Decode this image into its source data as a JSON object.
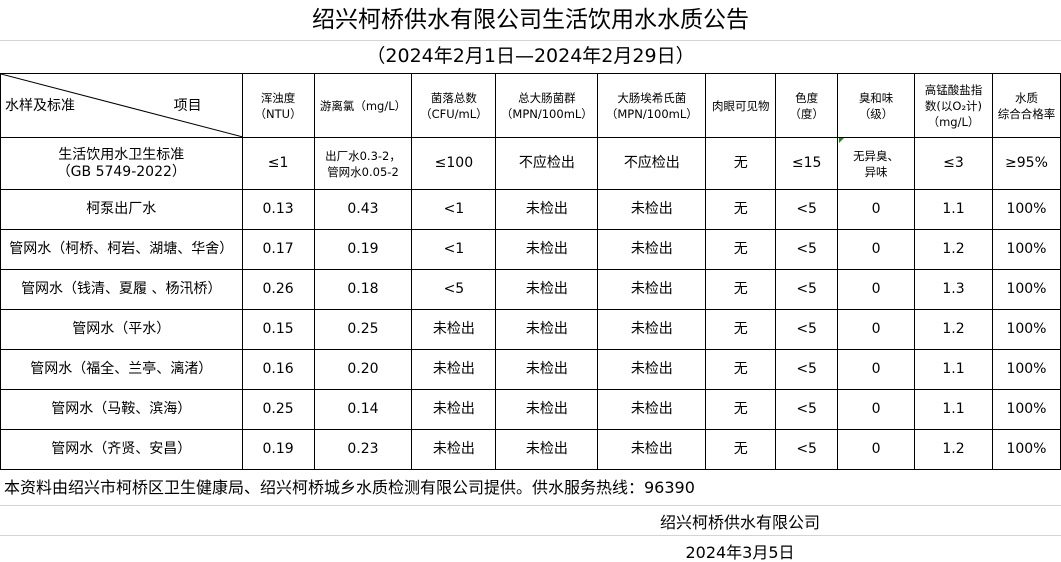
{
  "title": "绍兴柯桥供水有限公司生活饮用水水质公告",
  "subtitle": "（2024年2月1日—2024年2月29日）",
  "table": {
    "corner": {
      "left": "水样及标准",
      "right": "项目"
    },
    "headers": [
      "浑浊度\n（NTU）",
      "游离氯（mg/L）",
      "菌落总数\n（CFU/mL）",
      "总大肠菌群\n（MPN/100mL）",
      "大肠埃希氏菌\n（MPN/100mL）",
      "肉眼可见物",
      "色度\n（度）",
      "臭和味\n（级）",
      "高锰酸盐指\n数(以O₂计)\n（mg/L）",
      "水质\n综合合格率"
    ],
    "standard": {
      "name": "生活饮用水卫生标准\n（GB 5749-2022）",
      "values": [
        "≤1",
        "出厂水0.3-2，\n管网水0.05-2",
        "≤100",
        "不应检出",
        "不应检出",
        "无",
        "≤15",
        "无异臭、\n异味",
        "≤3",
        "≥95%"
      ]
    },
    "rows": [
      {
        "name": "柯泵出厂水",
        "values": [
          "0.13",
          "0.43",
          "<1",
          "未检出",
          "未检出",
          "无",
          "<5",
          "0",
          "1.1",
          "100%"
        ]
      },
      {
        "name": "管网水（柯桥、柯岩、湖塘、华舍）",
        "values": [
          "0.17",
          "0.19",
          "<1",
          "未检出",
          "未检出",
          "无",
          "<5",
          "0",
          "1.2",
          "100%"
        ]
      },
      {
        "name": "管网水（钱清、夏履 、杨汛桥）",
        "values": [
          "0.26",
          "0.18",
          "<5",
          "未检出",
          "未检出",
          "无",
          "<5",
          "0",
          "1.3",
          "100%"
        ]
      },
      {
        "name": "管网水（平水）",
        "values": [
          "0.15",
          "0.25",
          "未检出",
          "未检出",
          "未检出",
          "无",
          "<5",
          "0",
          "1.2",
          "100%"
        ]
      },
      {
        "name": "管网水（福全、兰亭、漓渚）",
        "values": [
          "0.16",
          "0.20",
          "未检出",
          "未检出",
          "未检出",
          "无",
          "<5",
          "0",
          "1.1",
          "100%"
        ]
      },
      {
        "name": "管网水（马鞍、滨海）",
        "values": [
          "0.25",
          "0.14",
          "未检出",
          "未检出",
          "未检出",
          "无",
          "<5",
          "0",
          "1.1",
          "100%"
        ]
      },
      {
        "name": "管网水（齐贤、安昌）",
        "values": [
          "0.19",
          "0.23",
          "未检出",
          "未检出",
          "未检出",
          "无",
          "<5",
          "0",
          "1.2",
          "100%"
        ]
      }
    ]
  },
  "note": "本资料由绍兴市柯桥区卫生健康局、绍兴柯桥城乡水质检测有限公司提供。供水服务热线：96390",
  "organization": "绍兴柯桥供水有限公司",
  "date": "2024年3月5日"
}
